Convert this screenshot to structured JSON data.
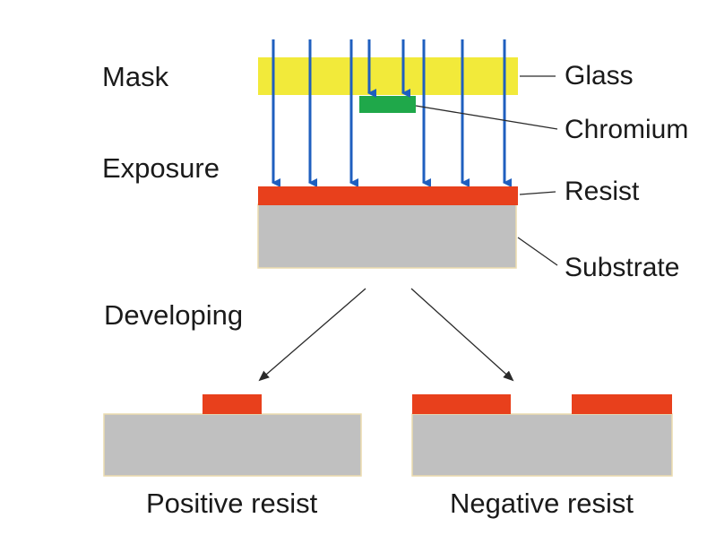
{
  "labels": {
    "mask": "Mask",
    "exposure": "Exposure",
    "developing": "Developing",
    "glass": "Glass",
    "chromium": "Chromium",
    "resist": "Resist",
    "substrate": "Substrate",
    "positive_resist": "Positive resist",
    "negative_resist": "Negative resist"
  },
  "colors": {
    "glass": "#f2ea3a",
    "chromium": "#1fa84a",
    "resist": "#e8401c",
    "substrate": "#c0c0c0",
    "substrate_edge": "#ecdcae",
    "light_beam": "#1f5fbf",
    "line": "#2a2a2a"
  },
  "icons": {
    "light_beam": "down-arrow-icon",
    "develop_arrow": "diagonal-arrow-icon"
  }
}
